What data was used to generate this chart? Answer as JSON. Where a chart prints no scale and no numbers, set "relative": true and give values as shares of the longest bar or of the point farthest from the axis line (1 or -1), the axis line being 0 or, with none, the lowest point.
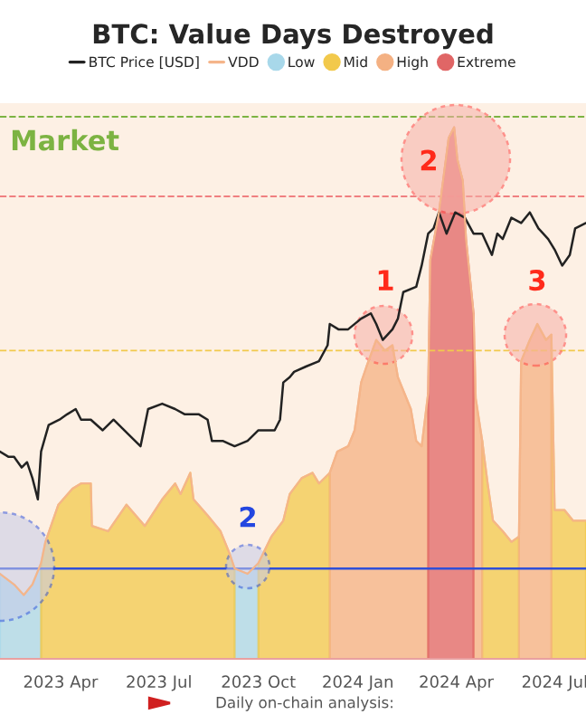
{
  "chart_data": {
    "type": "area",
    "title": "BTC: Value Days Destroyed",
    "relative": true,
    "tick_labels": "x",
    "grid": false,
    "legend": "top",
    "x": [
      "2023-02-04",
      "2023-02-17",
      "2023-02-26",
      "2023-03-06",
      "2023-03-14",
      "2023-03-18",
      "2023-03-30",
      "2023-04-12",
      "2023-04-20",
      "2023-04-29",
      "2023-04-30",
      "2023-05-15",
      "2023-06-01",
      "2023-06-18",
      "2023-07-04",
      "2023-07-16",
      "2023-07-21",
      "2023-07-30",
      "2023-08-02",
      "2023-08-15",
      "2023-08-27",
      "2023-09-04",
      "2023-09-09",
      "2023-09-21",
      "2023-10-01",
      "2023-10-13",
      "2023-10-24",
      "2023-10-30",
      "2023-11-10",
      "2023-11-20",
      "2023-11-26",
      "2023-12-06",
      "2023-12-13",
      "2023-12-23",
      "2023-12-29",
      "2024-01-04",
      "2024-01-09",
      "2024-01-18",
      "2024-01-26",
      "2024-02-02",
      "2024-02-07",
      "2024-02-19",
      "2024-02-24",
      "2024-02-29",
      "2024-03-06",
      "2024-03-08",
      "2024-03-16",
      "2024-03-25",
      "2024-03-30",
      "2024-04-02",
      "2024-04-07",
      "2024-04-10",
      "2024-04-17",
      "2024-04-19",
      "2024-04-25",
      "2024-04-30",
      "2024-05-05",
      "2024-05-14",
      "2024-05-22",
      "2024-05-29",
      "2024-05-31",
      "2024-06-08",
      "2024-06-15",
      "2024-06-23",
      "2024-06-28",
      "2024-07-01",
      "2024-07-10",
      "2024-07-18",
      "2024-07-30"
    ],
    "xlim": [
      "2023-02-04",
      "2024-07-30"
    ],
    "xticks": [
      {
        "value": "2023-04-01",
        "label": "2023 Apr"
      },
      {
        "value": "2023-07-01",
        "label": "2023 Jul"
      },
      {
        "value": "2023-10-01",
        "label": "2023 Oct"
      },
      {
        "value": "2024-01-01",
        "label": "2024 Jan"
      },
      {
        "value": "2024-04-01",
        "label": "2024 Apr"
      },
      {
        "value": "2024-07-01",
        "label": "2024 Jul"
      }
    ],
    "series": [
      {
        "name": "BTC Price [USD]",
        "type": "line",
        "color": "#222222",
        "x": [
          "2023-02-04",
          "2023-02-12",
          "2023-02-17",
          "2023-02-24",
          "2023-03-01",
          "2023-03-06",
          "2023-03-11",
          "2023-03-14",
          "2023-03-21",
          "2023-03-31",
          "2023-04-07",
          "2023-04-15",
          "2023-04-20",
          "2023-04-29",
          "2023-05-10",
          "2023-05-20",
          "2023-06-04",
          "2023-06-14",
          "2023-06-21",
          "2023-07-04",
          "2023-07-16",
          "2023-07-25",
          "2023-08-07",
          "2023-08-15",
          "2023-08-19",
          "2023-08-29",
          "2023-09-09",
          "2023-09-21",
          "2023-10-01",
          "2023-10-16",
          "2023-10-21",
          "2023-10-24",
          "2023-10-30",
          "2023-11-03",
          "2023-11-14",
          "2023-11-26",
          "2023-12-04",
          "2023-12-06",
          "2023-12-14",
          "2023-12-23",
          "2024-01-04",
          "2024-01-13",
          "2024-01-18",
          "2024-01-24",
          "2024-02-02",
          "2024-02-07",
          "2024-02-12",
          "2024-02-24",
          "2024-02-29",
          "2024-03-06",
          "2024-03-11",
          "2024-03-16",
          "2024-03-23",
          "2024-03-31",
          "2024-04-09",
          "2024-04-17",
          "2024-04-25",
          "2024-05-04",
          "2024-05-09",
          "2024-05-14",
          "2024-05-22",
          "2024-05-31",
          "2024-06-08",
          "2024-06-16",
          "2024-06-25",
          "2024-07-01",
          "2024-07-08",
          "2024-07-15",
          "2024-07-20",
          "2024-07-30"
        ],
        "values": [
          0.39,
          0.38,
          0.38,
          0.36,
          0.37,
          0.34,
          0.3,
          0.39,
          0.44,
          0.45,
          0.46,
          0.47,
          0.45,
          0.45,
          0.43,
          0.45,
          0.42,
          0.4,
          0.47,
          0.48,
          0.47,
          0.46,
          0.46,
          0.45,
          0.41,
          0.41,
          0.4,
          0.41,
          0.43,
          0.43,
          0.45,
          0.52,
          0.53,
          0.54,
          0.55,
          0.56,
          0.59,
          0.63,
          0.62,
          0.62,
          0.64,
          0.65,
          0.63,
          0.6,
          0.62,
          0.64,
          0.69,
          0.7,
          0.74,
          0.8,
          0.81,
          0.84,
          0.8,
          0.84,
          0.83,
          0.8,
          0.8,
          0.76,
          0.8,
          0.79,
          0.83,
          0.82,
          0.84,
          0.81,
          0.79,
          0.77,
          0.74,
          0.76,
          0.81,
          0.82
        ]
      },
      {
        "name": "VDD",
        "type": "line",
        "color": "#f5b58a",
        "values": [
          0.16,
          0.14,
          0.12,
          0.14,
          0.18,
          0.22,
          0.29,
          0.32,
          0.33,
          0.33,
          0.25,
          0.24,
          0.29,
          0.25,
          0.3,
          0.33,
          0.31,
          0.35,
          0.3,
          0.27,
          0.24,
          0.2,
          0.17,
          0.16,
          0.18,
          0.23,
          0.26,
          0.31,
          0.34,
          0.35,
          0.33,
          0.35,
          0.39,
          0.4,
          0.43,
          0.52,
          0.55,
          0.6,
          0.58,
          0.59,
          0.53,
          0.47,
          0.41,
          0.4,
          0.5,
          0.75,
          0.84,
          0.98,
          1,
          0.94,
          0.9,
          0.79,
          0.65,
          0.49,
          0.41,
          0.33,
          0.26,
          0.24,
          0.22,
          0.23,
          0.56,
          0.6,
          0.63,
          0.6,
          0.61,
          0.28,
          0.28,
          0.26,
          0.26
        ]
      },
      {
        "name": "Low",
        "color": "#a8d8ea",
        "values": [
          0.16,
          0.14,
          0.12,
          0.14,
          0.18,
          null,
          null,
          null,
          null,
          null,
          null,
          null,
          null,
          null,
          null,
          null,
          null,
          null,
          null,
          null,
          null,
          null,
          0.17,
          0.16,
          0.18,
          null,
          null,
          null,
          null,
          null,
          null,
          null,
          null,
          null,
          null,
          null,
          null,
          null,
          null,
          null,
          null,
          null,
          null,
          null,
          null,
          null,
          null,
          null,
          null,
          null,
          null,
          null,
          null,
          null,
          null,
          null,
          null,
          null,
          null,
          null,
          null,
          null,
          null,
          null,
          null,
          null,
          null,
          null,
          null
        ]
      },
      {
        "name": "Mid",
        "color": "#f2c94c",
        "values": [
          null,
          null,
          null,
          null,
          0.18,
          0.22,
          0.29,
          0.32,
          0.33,
          0.33,
          0.25,
          0.24,
          0.29,
          0.25,
          0.3,
          0.33,
          0.31,
          0.35,
          0.3,
          0.27,
          0.24,
          0.2,
          0.17,
          null,
          0.18,
          0.23,
          0.26,
          0.31,
          0.34,
          0.35,
          0.33,
          0.35,
          null,
          null,
          null,
          null,
          null,
          null,
          null,
          null,
          null,
          null,
          null,
          null,
          null,
          null,
          null,
          null,
          null,
          null,
          null,
          null,
          null,
          null,
          0.41,
          0.33,
          0.26,
          0.24,
          0.22,
          0.23,
          null,
          null,
          null,
          null,
          0.61,
          0.28,
          0.28,
          0.26,
          0.26
        ]
      },
      {
        "name": "High",
        "color": "#f4b183",
        "values": [
          null,
          null,
          null,
          null,
          null,
          null,
          null,
          null,
          null,
          null,
          null,
          null,
          null,
          null,
          null,
          null,
          null,
          null,
          null,
          null,
          null,
          null,
          null,
          null,
          null,
          null,
          null,
          null,
          null,
          null,
          null,
          0.35,
          0.39,
          0.4,
          0.43,
          0.52,
          0.55,
          0.6,
          0.58,
          0.59,
          0.53,
          0.47,
          0.41,
          0.4,
          0.5,
          null,
          null,
          null,
          null,
          null,
          null,
          null,
          0.65,
          0.49,
          0.41,
          null,
          null,
          null,
          null,
          0.23,
          0.56,
          0.6,
          0.63,
          0.6,
          0.61,
          null,
          null,
          null,
          null
        ]
      },
      {
        "name": "Extreme",
        "color": "#e06666",
        "values": [
          null,
          null,
          null,
          null,
          null,
          null,
          null,
          null,
          null,
          null,
          null,
          null,
          null,
          null,
          null,
          null,
          null,
          null,
          null,
          null,
          null,
          null,
          null,
          null,
          null,
          null,
          null,
          null,
          null,
          null,
          null,
          null,
          null,
          null,
          null,
          null,
          null,
          null,
          null,
          null,
          null,
          null,
          null,
          null,
          0.5,
          0.75,
          0.84,
          0.98,
          1,
          0.94,
          0.9,
          0.79,
          0.65,
          null,
          null,
          null,
          null,
          null,
          null,
          null,
          null,
          null,
          null,
          null,
          null,
          null,
          null,
          null,
          null
        ]
      }
    ],
    "ref_lines": [
      {
        "axis": "y",
        "value": 1.02,
        "label": "Market",
        "color": "#7cb342",
        "line_style": "dashed"
      },
      {
        "axis": "y",
        "value": 0.87,
        "color": "#f08080",
        "line_style": "dashed"
      },
      {
        "axis": "y",
        "value": 0.58,
        "color": "#f2c94c",
        "line_style": "dashed"
      },
      {
        "axis": "y",
        "value": 0.17,
        "color": "#2f4fd8",
        "line_style": "solid"
      }
    ],
    "annotations": [
      "1",
      "2",
      "3",
      "2",
      "Daily on-chain analysis:"
    ]
  }
}
